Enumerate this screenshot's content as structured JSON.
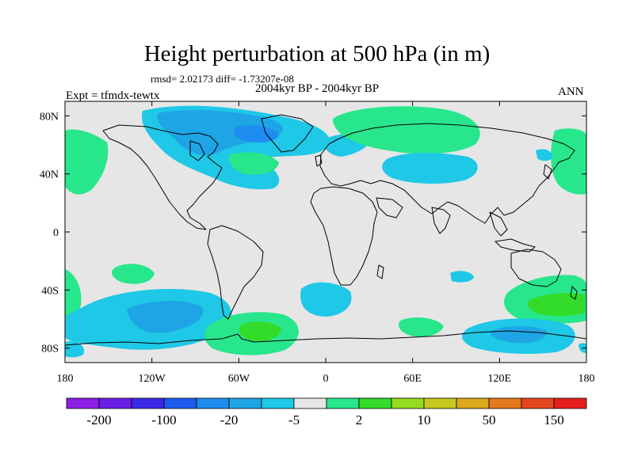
{
  "title": "Height perturbation at 500 hPa (in m)",
  "stats": "rmsd= 2.02173 diff= -1.73207e-08",
  "period": "2004kyr BP - 2004kyr BP",
  "experiment": "Expt = tfmdx-tewtx",
  "season": "ANN",
  "map": {
    "lon_range": [
      -180,
      180
    ],
    "lat_range": [
      -90,
      90
    ],
    "x_ticks": [
      {
        "lon": -180,
        "label": "180"
      },
      {
        "lon": -120,
        "label": "120W"
      },
      {
        "lon": -60,
        "label": "60W"
      },
      {
        "lon": 0,
        "label": "0"
      },
      {
        "lon": 60,
        "label": "60E"
      },
      {
        "lon": 120,
        "label": "120E"
      },
      {
        "lon": 180,
        "label": "180"
      }
    ],
    "y_ticks": [
      {
        "lat": 80,
        "label": "80N"
      },
      {
        "lat": 40,
        "label": "40N"
      },
      {
        "lat": 0,
        "label": "0"
      },
      {
        "lat": -40,
        "label": "40S"
      },
      {
        "lat": -80,
        "label": "80S"
      }
    ],
    "background_color": "#e6e6e6",
    "coastline_color": "#000000"
  },
  "colorbar": {
    "colors": [
      "#8c1ee6",
      "#6a1ee6",
      "#3c28e6",
      "#1e5aee",
      "#1e8cf0",
      "#1ea5e6",
      "#1ec8e6",
      "#e6e6e6",
      "#28e68c",
      "#32dc28",
      "#96dc1e",
      "#c8c81e",
      "#dcaa1e",
      "#e6781e",
      "#e6461e",
      "#e61e1e"
    ],
    "labels": [
      "-200",
      "-100",
      "-20",
      "-5",
      "2",
      "10",
      "50",
      "150"
    ]
  }
}
